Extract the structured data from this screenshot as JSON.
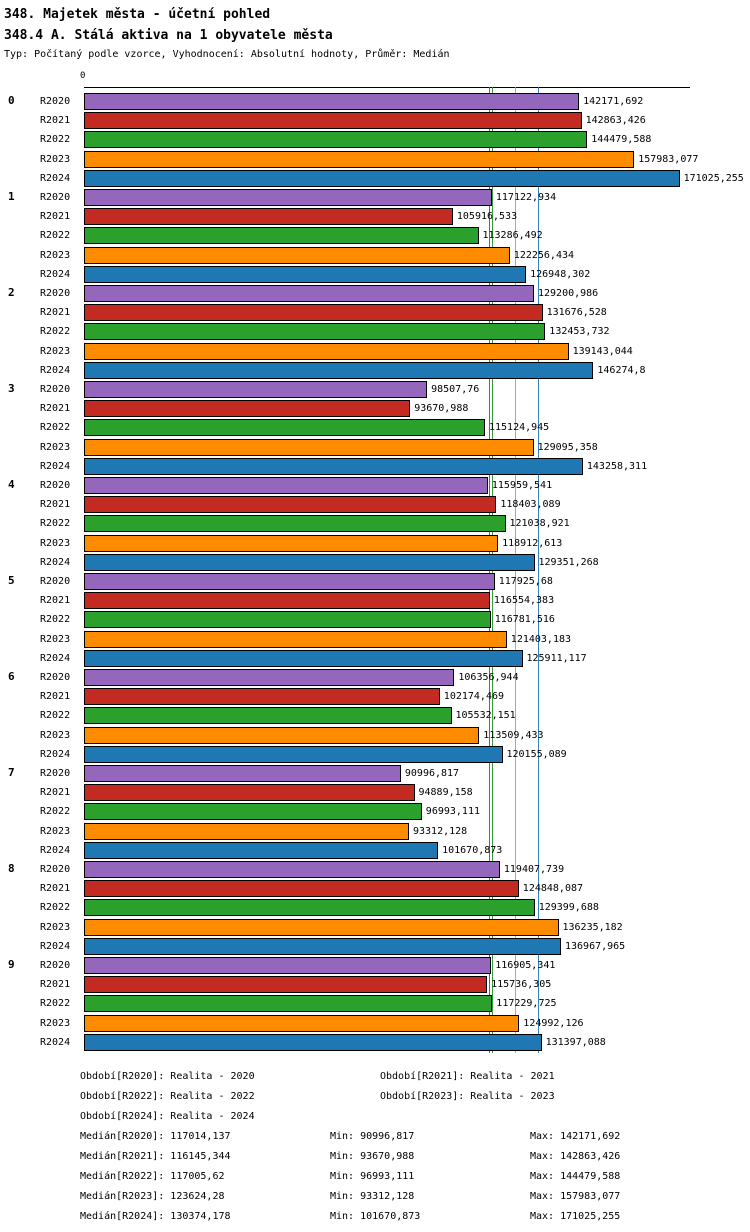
{
  "header": {
    "title": "348. Majetek města - účetní pohled",
    "subtitle": "348.4 A. Stálá aktiva na 1 obyvatele města",
    "meta": "Typ: Počítaný podle vzorce, Vyhodnocení: Absolutní hodnoty, Průměr: Medián"
  },
  "chart_data": {
    "type": "bar",
    "orientation": "horizontal",
    "x_axis": {
      "origin_label": "0",
      "xlim": [
        0,
        174000
      ],
      "grid": false
    },
    "legend_position": "footer",
    "series": [
      {
        "name": "R2020",
        "color": "#9467bd",
        "median": 117014.137
      },
      {
        "name": "R2021",
        "color": "#c32b22",
        "median": 116145.344
      },
      {
        "name": "R2022",
        "color": "#2ca02c",
        "median": 117005.62
      },
      {
        "name": "R2023",
        "color": "#ff8c00",
        "median": 123624.28
      },
      {
        "name": "R2024",
        "color": "#1f77b4",
        "median": 130374.178
      }
    ],
    "groups": [
      {
        "label": "0",
        "values": [
          "142171,692",
          "142863,426",
          "144479,588",
          "157983,077",
          "171025,255"
        ]
      },
      {
        "label": "1",
        "values": [
          "117122,934",
          "105916,533",
          "113286,492",
          "122256,434",
          "126948,302"
        ]
      },
      {
        "label": "2",
        "values": [
          "129200,986",
          "131676,528",
          "132453,732",
          "139143,044",
          "146274,8"
        ]
      },
      {
        "label": "3",
        "values": [
          "98507,76",
          "93670,988",
          "115124,945",
          "129095,358",
          "143258,311"
        ]
      },
      {
        "label": "4",
        "values": [
          "115959,541",
          "118403,089",
          "121038,921",
          "118912,613",
          "129351,268"
        ]
      },
      {
        "label": "5",
        "values": [
          "117925,68",
          "116554,383",
          "116781,516",
          "121403,183",
          "125911,117"
        ]
      },
      {
        "label": "6",
        "values": [
          "106356,944",
          "102174,469",
          "105532,151",
          "113509,433",
          "120155,089"
        ]
      },
      {
        "label": "7",
        "values": [
          "90996,817",
          "94889,158",
          "96993,111",
          "93312,128",
          "101670,873"
        ]
      },
      {
        "label": "8",
        "values": [
          "119407,739",
          "124848,087",
          "129399,688",
          "136235,182",
          "136967,965"
        ]
      },
      {
        "label": "9",
        "values": [
          "116905,341",
          "115736,305",
          "117229,725",
          "124992,126",
          "131397,088"
        ]
      }
    ]
  },
  "footer": {
    "periods": [
      "Období[R2020]: Realita - 2020",
      "Období[R2021]: Realita - 2021",
      "Období[R2022]: Realita - 2022",
      "Období[R2023]: Realita - 2023",
      "Období[R2024]: Realita - 2024"
    ],
    "stats": [
      {
        "median": "Medián[R2020]: 117014,137",
        "min": "Min: 90996,817",
        "max": "Max: 142171,692"
      },
      {
        "median": "Medián[R2021]: 116145,344",
        "min": "Min: 93670,988",
        "max": "Max: 142863,426"
      },
      {
        "median": "Medián[R2022]: 117005,62",
        "min": "Min: 96993,111",
        "max": "Max: 144479,588"
      },
      {
        "median": "Medián[R2023]: 123624,28",
        "min": "Min: 93312,128",
        "max": "Max: 157983,077"
      },
      {
        "median": "Medián[R2024]: 130374,178",
        "min": "Min: 101670,873",
        "max": "Max: 171025,255"
      }
    ]
  }
}
